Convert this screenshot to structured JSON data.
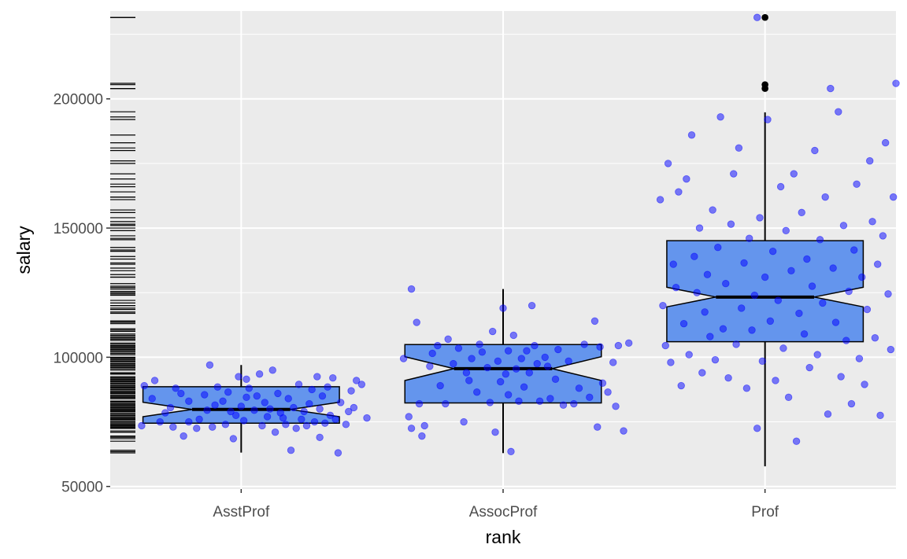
{
  "chart_data": {
    "type": "boxplot",
    "xlabel": "rank",
    "ylabel": "salary",
    "categories": [
      "AsstProf",
      "AssocProf",
      "Prof"
    ],
    "ylim": [
      49000,
      234000
    ],
    "y_ticks": [
      50000,
      100000,
      150000,
      200000
    ],
    "y_tick_labels": [
      "50000",
      "100000",
      "150000",
      "200000"
    ],
    "notched": true,
    "grid": true,
    "panel_background": "#ebebeb",
    "box_fill": "#6495ed",
    "point_color": "#0000ff",
    "point_alpha": 0.5,
    "outlier_color": "#000000",
    "boxes": [
      {
        "name": "AsstProf",
        "lower_whisker": 63100,
        "q1": 74500,
        "median": 79800,
        "q3": 88600,
        "upper_whisker": 97000,
        "notch_low": 77000,
        "notch_high": 82600,
        "outliers": []
      },
      {
        "name": "AssocProf",
        "lower_whisker": 62900,
        "q1": 82300,
        "median": 95600,
        "q3": 104900,
        "upper_whisker": 126400,
        "notch_low": 91000,
        "notch_high": 100200,
        "outliers": []
      },
      {
        "name": "Prof",
        "lower_whisker": 57800,
        "q1": 106000,
        "median": 123300,
        "q3": 145100,
        "upper_whisker": 194800,
        "notch_low": 119500,
        "notch_high": 127100,
        "outliers": [
          204000,
          205500,
          231500
        ]
      }
    ],
    "points": {
      "AsstProf": [
        [
          -0.38,
          73500
        ],
        [
          -0.37,
          89000
        ],
        [
          -0.34,
          84000
        ],
        [
          -0.33,
          91000
        ],
        [
          -0.31,
          75000
        ],
        [
          -0.29,
          78500
        ],
        [
          -0.27,
          80500
        ],
        [
          -0.26,
          73000
        ],
        [
          -0.25,
          88000
        ],
        [
          -0.23,
          86000
        ],
        [
          -0.22,
          69500
        ],
        [
          -0.2,
          75000
        ],
        [
          -0.2,
          83000
        ],
        [
          -0.17,
          72500
        ],
        [
          -0.16,
          76000
        ],
        [
          -0.14,
          85500
        ],
        [
          -0.13,
          79500
        ],
        [
          -0.12,
          97000
        ],
        [
          -0.11,
          73000
        ],
        [
          -0.1,
          81500
        ],
        [
          -0.09,
          88500
        ],
        [
          -0.07,
          83000
        ],
        [
          -0.06,
          74000
        ],
        [
          -0.05,
          86500
        ],
        [
          -0.04,
          79000
        ],
        [
          -0.03,
          68500
        ],
        [
          -0.02,
          77500
        ],
        [
          -0.01,
          92500
        ],
        [
          0,
          81000
        ],
        [
          0.01,
          75500
        ],
        [
          0.02,
          84500
        ],
        [
          0.02,
          91500
        ],
        [
          0.03,
          88000
        ],
        [
          0.05,
          79500
        ],
        [
          0.06,
          85000
        ],
        [
          0.07,
          93500
        ],
        [
          0.08,
          73500
        ],
        [
          0.09,
          82500
        ],
        [
          0.1,
          77000
        ],
        [
          0.11,
          80000
        ],
        [
          0.12,
          95000
        ],
        [
          0.13,
          71000
        ],
        [
          0.14,
          86000
        ],
        [
          0.15,
          78500
        ],
        [
          0.16,
          76500
        ],
        [
          0.17,
          74000
        ],
        [
          0.18,
          84000
        ],
        [
          0.19,
          64000
        ],
        [
          0.2,
          80500
        ],
        [
          0.21,
          72500
        ],
        [
          0.22,
          89500
        ],
        [
          0.23,
          76000
        ],
        [
          0.24,
          79000
        ],
        [
          0.25,
          73500
        ],
        [
          0.26,
          82000
        ],
        [
          0.27,
          87500
        ],
        [
          0.28,
          75000
        ],
        [
          0.29,
          92500
        ],
        [
          0.3,
          69000
        ],
        [
          0.3,
          80000
        ],
        [
          0.31,
          85000
        ],
        [
          0.32,
          74500
        ],
        [
          0.33,
          88500
        ],
        [
          0.34,
          77500
        ],
        [
          0.35,
          92000
        ],
        [
          0.36,
          76000
        ],
        [
          0.37,
          63000
        ],
        [
          0.38,
          82500
        ],
        [
          0.4,
          74000
        ],
        [
          0.41,
          79000
        ],
        [
          0.42,
          87000
        ],
        [
          0.43,
          80500
        ],
        [
          0.44,
          91000
        ],
        [
          0.46,
          89500
        ],
        [
          0.48,
          76500
        ]
      ],
      "AssocProf": [
        [
          -0.38,
          99500
        ],
        [
          -0.36,
          77000
        ],
        [
          -0.35,
          72500
        ],
        [
          -0.33,
          113500
        ],
        [
          -0.32,
          82000
        ],
        [
          -0.31,
          69500
        ],
        [
          -0.3,
          73500
        ],
        [
          -0.28,
          96500
        ],
        [
          -0.27,
          101500
        ],
        [
          -0.25,
          104500
        ],
        [
          -0.24,
          89000
        ],
        [
          -0.22,
          82000
        ],
        [
          -0.21,
          107000
        ],
        [
          -0.19,
          97500
        ],
        [
          -0.17,
          103500
        ],
        [
          -0.15,
          75000
        ],
        [
          -0.14,
          94000
        ],
        [
          -0.13,
          91000
        ],
        [
          -0.12,
          99500
        ],
        [
          -0.1,
          86500
        ],
        [
          -0.09,
          105000
        ],
        [
          -0.08,
          102000
        ],
        [
          -0.06,
          96000
        ],
        [
          -0.05,
          82500
        ],
        [
          -0.04,
          110000
        ],
        [
          -0.03,
          71000
        ],
        [
          -0.02,
          98500
        ],
        [
          -0.01,
          90500
        ],
        [
          0,
          119000
        ],
        [
          0.01,
          93500
        ],
        [
          0.02,
          85500
        ],
        [
          0.02,
          102500
        ],
        [
          0.03,
          63500
        ],
        [
          0.04,
          108500
        ],
        [
          0.05,
          95500
        ],
        [
          0.06,
          83000
        ],
        [
          0.07,
          99500
        ],
        [
          0.08,
          88500
        ],
        [
          0.09,
          102500
        ],
        [
          0.1,
          94000
        ],
        [
          0.11,
          120000
        ],
        [
          0.12,
          104500
        ],
        [
          0.13,
          97500
        ],
        [
          0.14,
          83000
        ],
        [
          0.16,
          100000
        ],
        [
          0.17,
          96500
        ],
        [
          0.18,
          84000
        ],
        [
          0.2,
          91500
        ],
        [
          0.21,
          103000
        ],
        [
          0.23,
          81500
        ],
        [
          0.25,
          98500
        ],
        [
          0.27,
          82000
        ],
        [
          0.29,
          88000
        ],
        [
          0.31,
          105000
        ],
        [
          0.33,
          84500
        ],
        [
          0.35,
          114000
        ],
        [
          0.36,
          73000
        ],
        [
          0.37,
          104000
        ],
        [
          0.38,
          90000
        ],
        [
          0.4,
          86500
        ],
        [
          0.42,
          98000
        ],
        [
          0.43,
          81000
        ],
        [
          0.44,
          104500
        ],
        [
          0.46,
          71500
        ],
        [
          0.48,
          105500
        ],
        [
          -0.35,
          126400
        ]
      ],
      "Prof": [
        [
          -0.4,
          161000
        ],
        [
          -0.39,
          120000
        ],
        [
          -0.38,
          104500
        ],
        [
          -0.37,
          175000
        ],
        [
          -0.36,
          98000
        ],
        [
          -0.35,
          136000
        ],
        [
          -0.34,
          127000
        ],
        [
          -0.33,
          164000
        ],
        [
          -0.32,
          89000
        ],
        [
          -0.31,
          113000
        ],
        [
          -0.3,
          169000
        ],
        [
          -0.29,
          101000
        ],
        [
          -0.28,
          186000
        ],
        [
          -0.27,
          139000
        ],
        [
          -0.26,
          125000
        ],
        [
          -0.25,
          150000
        ],
        [
          -0.24,
          94000
        ],
        [
          -0.23,
          117500
        ],
        [
          -0.22,
          132000
        ],
        [
          -0.21,
          108000
        ],
        [
          -0.2,
          157000
        ],
        [
          -0.19,
          99000
        ],
        [
          -0.18,
          142500
        ],
        [
          -0.17,
          193000
        ],
        [
          -0.16,
          111000
        ],
        [
          -0.15,
          128500
        ],
        [
          -0.14,
          92000
        ],
        [
          -0.13,
          151500
        ],
        [
          -0.12,
          171000
        ],
        [
          -0.11,
          105000
        ],
        [
          -0.1,
          181000
        ],
        [
          -0.09,
          119000
        ],
        [
          -0.08,
          136500
        ],
        [
          -0.07,
          88000
        ],
        [
          -0.06,
          146000
        ],
        [
          -0.05,
          110500
        ],
        [
          -0.04,
          124000
        ],
        [
          -0.03,
          72500
        ],
        [
          -0.02,
          154000
        ],
        [
          -0.01,
          98500
        ],
        [
          0,
          131000
        ],
        [
          0.01,
          192000
        ],
        [
          0.02,
          114000
        ],
        [
          0.03,
          141000
        ],
        [
          0.04,
          91000
        ],
        [
          0.05,
          122000
        ],
        [
          0.06,
          166000
        ],
        [
          0.07,
          103500
        ],
        [
          0.08,
          149000
        ],
        [
          0.09,
          84500
        ],
        [
          0.1,
          133500
        ],
        [
          0.11,
          171000
        ],
        [
          0.12,
          67500
        ],
        [
          0.13,
          117000
        ],
        [
          0.14,
          156000
        ],
        [
          0.15,
          109000
        ],
        [
          0.16,
          138000
        ],
        [
          0.17,
          96000
        ],
        [
          0.18,
          127500
        ],
        [
          0.19,
          180000
        ],
        [
          0.2,
          101000
        ],
        [
          0.21,
          145500
        ],
        [
          0.22,
          121000
        ],
        [
          0.23,
          162000
        ],
        [
          0.24,
          78000
        ],
        [
          0.25,
          204000
        ],
        [
          0.26,
          134500
        ],
        [
          0.27,
          113500
        ],
        [
          0.28,
          195000
        ],
        [
          0.29,
          92500
        ],
        [
          0.3,
          151000
        ],
        [
          0.31,
          106500
        ],
        [
          0.32,
          125500
        ],
        [
          0.33,
          82000
        ],
        [
          0.34,
          141500
        ],
        [
          0.35,
          167000
        ],
        [
          0.36,
          99500
        ],
        [
          0.37,
          131000
        ],
        [
          0.38,
          89500
        ],
        [
          0.39,
          118500
        ],
        [
          0.4,
          176000
        ],
        [
          0.41,
          152500
        ],
        [
          0.42,
          107500
        ],
        [
          0.43,
          136000
        ],
        [
          0.44,
          77500
        ],
        [
          0.45,
          147000
        ],
        [
          0.46,
          183000
        ],
        [
          0.47,
          124500
        ],
        [
          0.48,
          103000
        ],
        [
          0.49,
          162000
        ],
        [
          0.5,
          206000
        ],
        [
          -0.03,
          231500
        ]
      ]
    }
  }
}
